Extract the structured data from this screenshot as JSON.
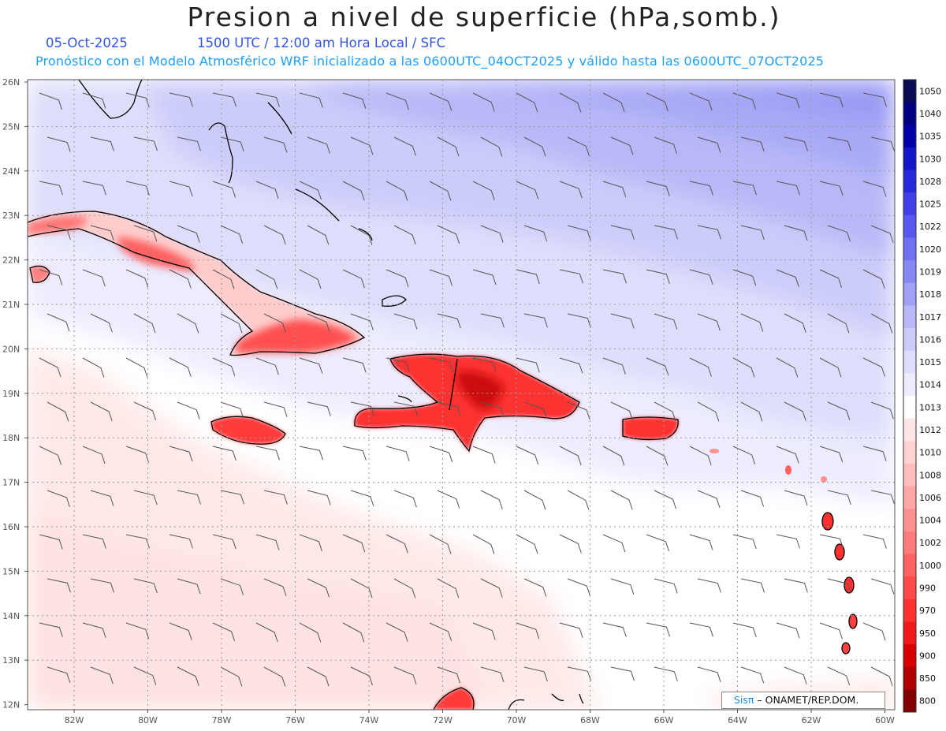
{
  "header": {
    "title": "Presion a nivel de superficie (hPa,somb.)",
    "date": "05-Oct-2025",
    "time_info": "1500 UTC / 12:00 am Hora Local / SFC",
    "description": "Pronóstico con el Modelo Atmosférico WRF inicializado a las 0600UTC_04OCT2025 y válido hasta las  0600UTC_07OCT2025"
  },
  "axes": {
    "lat_labels": [
      "26N",
      "25N",
      "24N",
      "23N",
      "22N",
      "21N",
      "20N",
      "19N",
      "18N",
      "17N",
      "16N",
      "15N",
      "14N",
      "13N",
      "12N"
    ],
    "lon_labels": [
      "82W",
      "80W",
      "78W",
      "76W",
      "74W",
      "72W",
      "70W",
      "68W",
      "66W",
      "64W",
      "62W",
      "60W"
    ]
  },
  "colorbar": {
    "levels": [
      "1050",
      "1040",
      "1035",
      "1030",
      "1028",
      "1025",
      "1022",
      "1020",
      "1019",
      "1018",
      "1017",
      "1016",
      "1015",
      "1014",
      "1013",
      "1012",
      "1010",
      "1008",
      "1006",
      "1004",
      "1002",
      "1000",
      "990",
      "970",
      "950",
      "900",
      "850",
      "800"
    ],
    "colors": [
      "#0a0a55",
      "#000080",
      "#0000a8",
      "#1414c8",
      "#2828dc",
      "#4040e8",
      "#5858f0",
      "#7070f2",
      "#8888f4",
      "#a0a0f6",
      "#b8b8f8",
      "#ccccfa",
      "#dedefc",
      "#ececfe",
      "#ffffff",
      "#ffe6e6",
      "#ffd2d2",
      "#ffbcbc",
      "#ffa6a6",
      "#ff9090",
      "#ff7a7a",
      "#ff6262",
      "#ff4a4a",
      "#ff3030",
      "#f01818",
      "#d80000",
      "#b00000",
      "#800000"
    ]
  },
  "credit": {
    "brand": "Sisπ",
    "org": " – ONAMET/REP.DOM."
  }
}
